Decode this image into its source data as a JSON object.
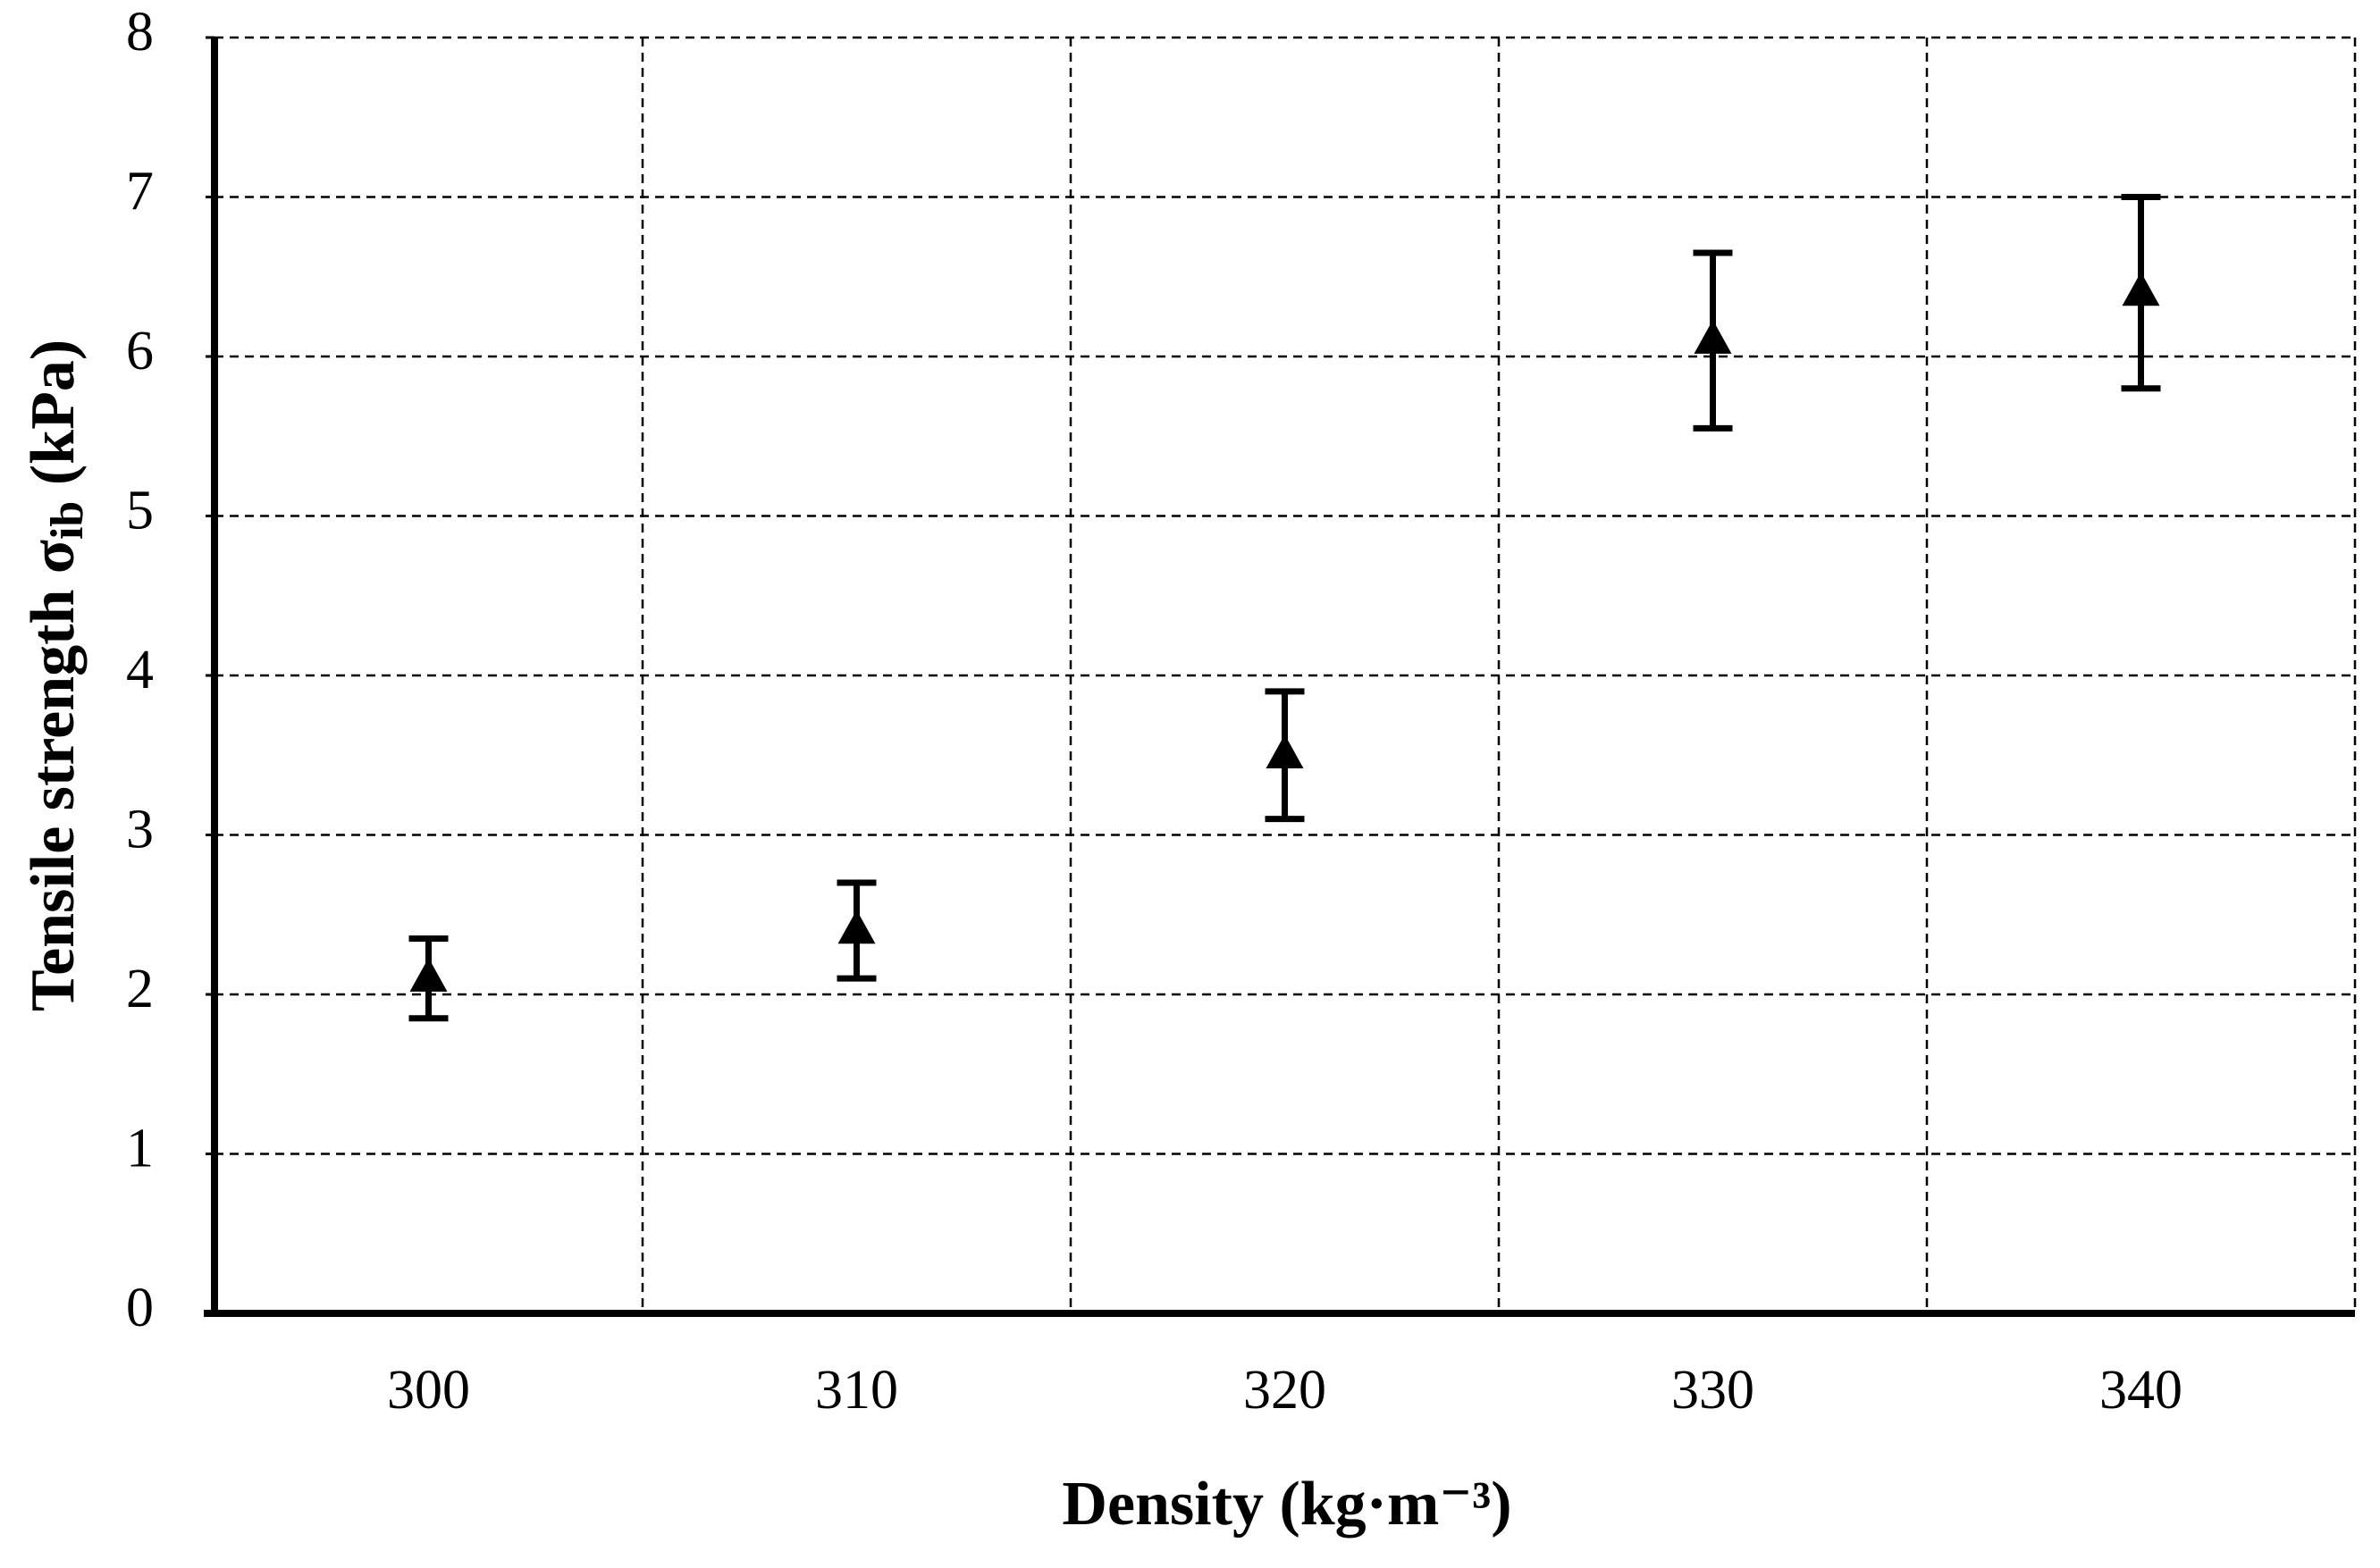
{
  "chart_data": {
    "type": "errorbar",
    "x_label": "Density (kg·m⁻³)",
    "y_label": {
      "main": "Tensile strength σ",
      "sub": "ib",
      "unit": " (kPa)"
    },
    "categories": [
      "300",
      "310",
      "320",
      "330",
      "340"
    ],
    "values": [
      2.1,
      2.4,
      3.5,
      6.1,
      6.4
    ],
    "errors": [
      0.25,
      0.3,
      0.4,
      0.55,
      0.6
    ],
    "color": "#000000",
    "ylim": [
      0,
      8
    ],
    "yticks": [
      0,
      1,
      2,
      3,
      4,
      5,
      6,
      7,
      8
    ],
    "grid": true
  }
}
